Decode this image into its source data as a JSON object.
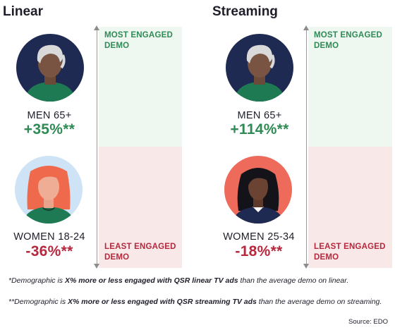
{
  "chart_data": [
    {
      "type": "table",
      "title": "Linear",
      "top_label": "MOST ENGAGED DEMO",
      "bottom_label": "LEAST ENGAGED DEMO",
      "categories": [
        "MEN 65+",
        "WOMEN 18-24"
      ],
      "values": [
        35,
        -36
      ],
      "value_labels": [
        "+35%**",
        "-36%**"
      ]
    },
    {
      "type": "table",
      "title": "Streaming",
      "top_label": "MOST ENGAGED DEMO",
      "bottom_label": "LEAST ENGAGED DEMO",
      "categories": [
        "MEN 65+",
        "WOMEN 25-34"
      ],
      "values": [
        114,
        -18
      ],
      "value_labels": [
        "+114%**",
        "-18%**"
      ]
    }
  ],
  "footnotes": {
    "note1_a": "*Demographic is ",
    "note1_b": "X% more or less engaged with QSR linear TV ads",
    "note1_c": " than the average demo on linear.",
    "note2_a": "**Demographic is ",
    "note2_b": "X% more or less engaged with QSR streaming TV ads",
    "note2_c": " than the average demo on streaming."
  },
  "source": "Source: EDO",
  "colors": {
    "positive": "#2f8a55",
    "negative": "#b5283d",
    "most_band": "#eef8f1",
    "least_band": "#f8e8e8",
    "navy_avatar_bg": "#1f2a52",
    "light_blue_avatar_bg": "#cfe3f7",
    "salmon_avatar_bg": "#ee6b5c"
  },
  "icons": [
    "man-avatar-icon",
    "woman-redhead-avatar-icon",
    "woman-dark-hair-avatar-icon"
  ]
}
